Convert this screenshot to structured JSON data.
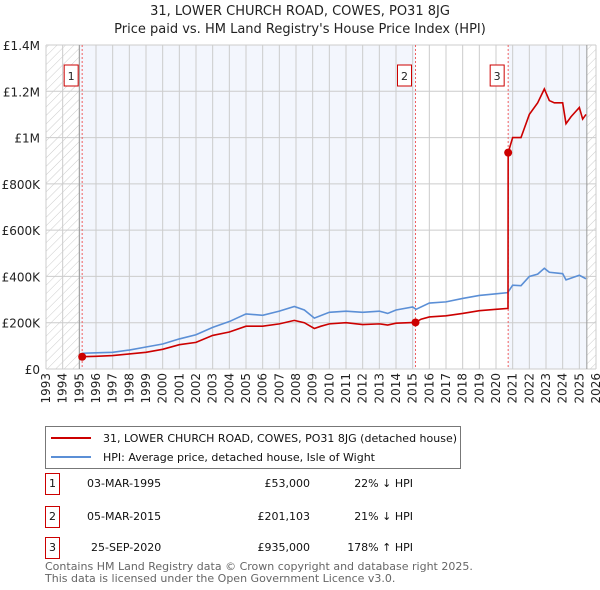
{
  "chart_data": {
    "type": "line",
    "title": "31, LOWER CHURCH ROAD, COWES, PO31 8JG",
    "subtitle": "Price paid vs. HM Land Registry's House Price Index (HPI)",
    "xlim": [
      1993,
      2026
    ],
    "ylim": [
      0,
      1400000
    ],
    "x_ticks": [
      "1993",
      "1994",
      "1995",
      "1996",
      "1997",
      "1998",
      "1999",
      "2000",
      "2001",
      "2002",
      "2003",
      "2004",
      "2005",
      "2006",
      "2007",
      "2008",
      "2009",
      "2010",
      "2011",
      "2012",
      "2013",
      "2014",
      "2015",
      "2016",
      "2017",
      "2018",
      "2019",
      "2020",
      "2021",
      "2022",
      "2023",
      "2024",
      "2025",
      "2026"
    ],
    "y_ticks": [
      {
        "v": 0,
        "label": "£0"
      },
      {
        "v": 200000,
        "label": "£200K"
      },
      {
        "v": 400000,
        "label": "£400K"
      },
      {
        "v": 600000,
        "label": "£600K"
      },
      {
        "v": 800000,
        "label": "£800K"
      },
      {
        "v": 1000000,
        "label": "£1M"
      },
      {
        "v": 1200000,
        "label": "£1.2M"
      },
      {
        "v": 1400000,
        "label": "£1.4M"
      }
    ],
    "grid": true,
    "series": [
      {
        "name": "31, LOWER CHURCH ROAD, COWES, PO31 8JG (detached house)",
        "color": "#cc0000",
        "x": [
          1995.17,
          1996,
          1997,
          1998,
          1999,
          2000,
          2001,
          2002,
          2003,
          2004,
          2005,
          2006,
          2007,
          2007.9,
          2008.5,
          2009.1,
          2009.5,
          2010,
          2011,
          2012,
          2013,
          2013.5,
          2014,
          2015.17,
          2015.5,
          2016,
          2017,
          2018,
          2019,
          2020,
          2020.72,
          2020.73,
          2021,
          2021.5,
          2022,
          2022.5,
          2022.9,
          2023.2,
          2023.5,
          2024,
          2024.2,
          2024.5,
          2025,
          2025.2,
          2025.4
        ],
        "y": [
          53000,
          55000,
          58000,
          65000,
          72000,
          85000,
          105000,
          115000,
          145000,
          160000,
          185000,
          185000,
          195000,
          210000,
          200000,
          175000,
          185000,
          195000,
          200000,
          192000,
          195000,
          190000,
          198000,
          201103,
          215000,
          225000,
          230000,
          240000,
          252000,
          258000,
          262000,
          935000,
          1000000,
          1000000,
          1100000,
          1150000,
          1210000,
          1160000,
          1150000,
          1150000,
          1060000,
          1090000,
          1130000,
          1080000,
          1100000
        ]
      },
      {
        "name": "HPI: Average price, detached house, Isle of Wight",
        "color": "#5b8fd6",
        "x": [
          1995.17,
          1996,
          1997,
          1998,
          1999,
          2000,
          2001,
          2002,
          2003,
          2004,
          2005,
          2006,
          2007,
          2007.9,
          2008.5,
          2009.1,
          2010,
          2011,
          2012,
          2013,
          2013.5,
          2014,
          2015,
          2015.2,
          2016,
          2017,
          2018,
          2019,
          2020,
          2020.7,
          2021,
          2021.5,
          2022,
          2022.5,
          2022.9,
          2023.2,
          2024,
          2024.2,
          2025,
          2025.4
        ],
        "y": [
          68000,
          70000,
          72000,
          82000,
          95000,
          108000,
          130000,
          148000,
          180000,
          205000,
          238000,
          232000,
          250000,
          270000,
          255000,
          220000,
          245000,
          250000,
          245000,
          250000,
          240000,
          255000,
          268000,
          258000,
          285000,
          290000,
          305000,
          318000,
          325000,
          330000,
          362000,
          360000,
          400000,
          410000,
          435000,
          418000,
          412000,
          385000,
          405000,
          390000
        ]
      }
    ],
    "sales": [
      {
        "n": "1",
        "x": 1995.17,
        "y": 53000,
        "date": "03-MAR-1995",
        "price": "£53,000",
        "hpi": "22% ↓ HPI"
      },
      {
        "n": "2",
        "x": 2015.17,
        "y": 201103,
        "date": "05-MAR-2015",
        "price": "£201,103",
        "hpi": "21% ↓ HPI"
      },
      {
        "n": "3",
        "x": 2020.73,
        "y": 935000,
        "date": "25-SEP-2020",
        "price": "£935,000",
        "hpi": "178% ↑ HPI"
      }
    ],
    "hatch_before": 1995.0,
    "hatch_after": 2025.45
  },
  "footer": {
    "line1": "Contains HM Land Registry data © Crown copyright and database right 2025.",
    "line2": "This data is licensed under the Open Government Licence v3.0."
  }
}
